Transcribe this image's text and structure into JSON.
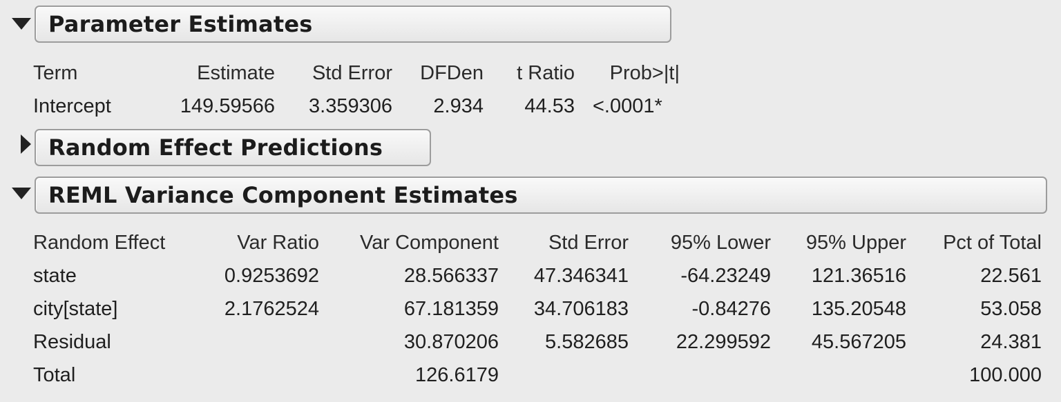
{
  "param_panel": {
    "title": "Parameter Estimates",
    "expanded": true,
    "columns": [
      "Term",
      "Estimate",
      "Std Error",
      "DFDen",
      "t Ratio",
      "Prob>|t|"
    ],
    "rows": [
      [
        "Intercept",
        "149.59566",
        "3.359306",
        "2.934",
        "44.53",
        "<.0001*"
      ]
    ]
  },
  "random_panel": {
    "title": "Random Effect Predictions",
    "expanded": false
  },
  "reml_panel": {
    "title": "REML Variance Component Estimates",
    "expanded": true,
    "columns": [
      "Random Effect",
      "Var Ratio",
      "Var Component",
      "Std Error",
      "95% Lower",
      "95% Upper",
      "Pct of Total"
    ],
    "rows": [
      [
        "state",
        "0.9253692",
        "28.566337",
        "47.346341",
        "-64.23249",
        "121.36516",
        "22.561"
      ],
      [
        "city[state]",
        "2.1762524",
        "67.181359",
        "34.706183",
        "-0.84276",
        "135.20548",
        "53.058"
      ],
      [
        "Residual",
        "",
        "30.870206",
        "5.582685",
        "22.299592",
        "45.567205",
        "24.381"
      ],
      [
        "Total",
        "",
        "126.6179",
        "",
        "",
        "",
        "100.000"
      ]
    ]
  },
  "icons": {
    "expanded": "triangle-down-icon",
    "collapsed": "triangle-right-icon"
  },
  "colors": {
    "background": "#ebebeb",
    "header_border": "#9c9c9c",
    "text": "#1a1a1a"
  }
}
